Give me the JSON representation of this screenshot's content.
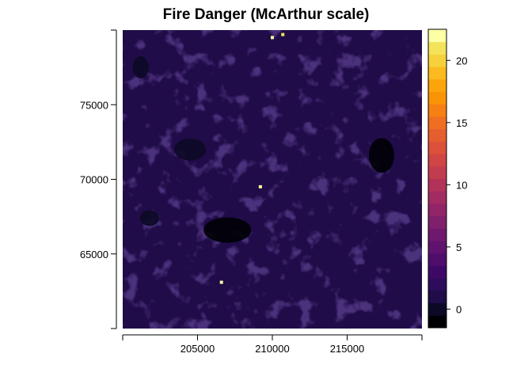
{
  "chart_data": {
    "type": "heatmap",
    "title": "Fire Danger (McArthur scale)",
    "xlabel": "",
    "ylabel": "",
    "xlim": [
      200000,
      220000
    ],
    "ylim": [
      60000,
      80000
    ],
    "x_ticks": [
      205000,
      210000,
      215000
    ],
    "x_tick_labels": [
      "205000",
      "210000",
      "215000"
    ],
    "y_ticks": [
      65000,
      70000,
      75000
    ],
    "y_tick_labels": [
      "65000",
      "70000",
      "75000"
    ],
    "legend": {
      "placement": "right",
      "value_range": [
        -1.5,
        22.5
      ],
      "tick_values": [
        0,
        5,
        10,
        15,
        20
      ],
      "tick_labels": [
        "0",
        "5",
        "10",
        "15",
        "20"
      ],
      "bins": [
        {
          "from": -1.5,
          "to": -0.5,
          "color": "#000004"
        },
        {
          "from": -0.5,
          "to": 0.5,
          "color": "#0c0926"
        },
        {
          "from": 0.5,
          "to": 1.5,
          "color": "#1f0c48"
        },
        {
          "from": 1.5,
          "to": 2.5,
          "color": "#2d0c5b"
        },
        {
          "from": 2.5,
          "to": 3.5,
          "color": "#3e0966"
        },
        {
          "from": 3.5,
          "to": 4.5,
          "color": "#4f0d6c"
        },
        {
          "from": 4.5,
          "to": 5.5,
          "color": "#5f136e"
        },
        {
          "from": 5.5,
          "to": 6.5,
          "color": "#6f196e"
        },
        {
          "from": 6.5,
          "to": 7.5,
          "color": "#80206c"
        },
        {
          "from": 7.5,
          "to": 8.5,
          "color": "#912568"
        },
        {
          "from": 8.5,
          "to": 9.5,
          "color": "#a22b62"
        },
        {
          "from": 9.5,
          "to": 10.5,
          "color": "#b2325a"
        },
        {
          "from": 10.5,
          "to": 11.5,
          "color": "#c23c50"
        },
        {
          "from": 11.5,
          "to": 12.5,
          "color": "#d04545"
        },
        {
          "from": 12.5,
          "to": 13.5,
          "color": "#dd513a"
        },
        {
          "from": 13.5,
          "to": 14.5,
          "color": "#e75e2e"
        },
        {
          "from": 14.5,
          "to": 15.5,
          "color": "#f06e21"
        },
        {
          "from": 15.5,
          "to": 16.5,
          "color": "#f68013"
        },
        {
          "from": 16.5,
          "to": 17.5,
          "color": "#fa9407"
        },
        {
          "from": 17.5,
          "to": 18.5,
          "color": "#fca50a"
        },
        {
          "from": 18.5,
          "to": 19.5,
          "color": "#fbba1f"
        },
        {
          "from": 19.5,
          "to": 20.5,
          "color": "#f6d13c"
        },
        {
          "from": 20.5,
          "to": 21.5,
          "color": "#f3e35a"
        },
        {
          "from": 21.5,
          "to": 22.5,
          "color": "#fcffa4"
        }
      ]
    },
    "field": {
      "background_value": 1,
      "background_color": "#1f0c48",
      "lower_value_patches": [
        {
          "x": 207000,
          "y": 66600,
          "value": -1,
          "description_value": "near-zero"
        },
        {
          "x": 217300,
          "y": 71600,
          "value": -1
        },
        {
          "x": 201200,
          "y": 77500,
          "value": 0
        },
        {
          "x": 204500,
          "y": 72000,
          "value": 0
        },
        {
          "x": 201800,
          "y": 67400,
          "value": 0
        }
      ],
      "hotspots": [
        {
          "x": 210000,
          "y": 79500,
          "value": 22
        },
        {
          "x": 210700,
          "y": 79700,
          "value": 21
        },
        {
          "x": 209200,
          "y": 69500,
          "value": 22
        },
        {
          "x": 206600,
          "y": 63100,
          "value": 22
        }
      ]
    }
  }
}
